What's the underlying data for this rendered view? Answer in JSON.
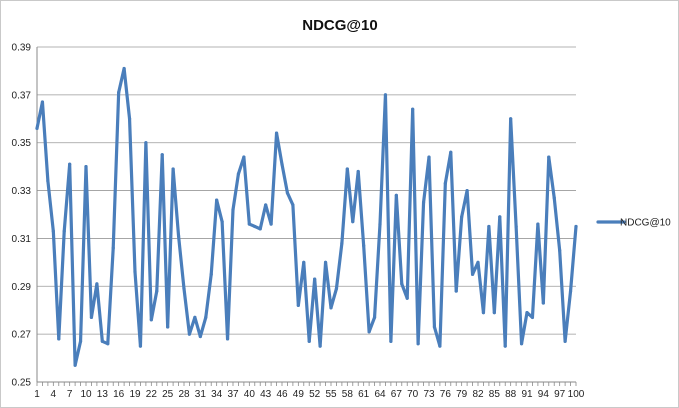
{
  "chart_data": {
    "type": "line",
    "title": "NDCG@10",
    "xlabel": "",
    "ylabel": "",
    "ylim": [
      0.25,
      0.39
    ],
    "yticks": [
      "0.25",
      "0.27",
      "0.29",
      "0.31",
      "0.33",
      "0.35",
      "0.37",
      "0.39"
    ],
    "xticks": [
      "1",
      "4",
      "7",
      "10",
      "13",
      "16",
      "19",
      "22",
      "25",
      "28",
      "31",
      "34",
      "37",
      "40",
      "43",
      "46",
      "49",
      "52",
      "55",
      "58",
      "61",
      "64",
      "67",
      "70",
      "73",
      "76",
      "79",
      "82",
      "85",
      "88",
      "91",
      "94",
      "97",
      "100"
    ],
    "grid": true,
    "legend_position": "right",
    "color": "#4a7ebb",
    "series": [
      {
        "name": "NDCG@10",
        "x": [
          1,
          2,
          3,
          4,
          5,
          6,
          7,
          8,
          9,
          10,
          11,
          12,
          13,
          14,
          15,
          16,
          17,
          18,
          19,
          20,
          21,
          22,
          23,
          24,
          25,
          26,
          27,
          28,
          29,
          30,
          31,
          32,
          33,
          34,
          35,
          36,
          37,
          38,
          39,
          40,
          41,
          42,
          43,
          44,
          45,
          46,
          47,
          48,
          49,
          50,
          51,
          52,
          53,
          54,
          55,
          56,
          57,
          58,
          59,
          60,
          61,
          62,
          63,
          64,
          65,
          66,
          67,
          68,
          69,
          70,
          71,
          72,
          73,
          74,
          75,
          76,
          77,
          78,
          79,
          80,
          81,
          82,
          83,
          84,
          85,
          86,
          87,
          88,
          89,
          90,
          91,
          92,
          93,
          94,
          95,
          96,
          97,
          98,
          99,
          100
        ],
        "values": [
          0.356,
          0.367,
          0.334,
          0.313,
          0.268,
          0.313,
          0.341,
          0.257,
          0.267,
          0.34,
          0.277,
          0.291,
          0.267,
          0.266,
          0.306,
          0.371,
          0.381,
          0.36,
          0.296,
          0.265,
          0.35,
          0.276,
          0.288,
          0.345,
          0.273,
          0.339,
          0.311,
          0.289,
          0.27,
          0.277,
          0.269,
          0.277,
          0.295,
          0.326,
          0.317,
          0.268,
          0.322,
          0.337,
          0.344,
          0.316,
          0.315,
          0.314,
          0.324,
          0.316,
          0.354,
          0.341,
          0.329,
          0.324,
          0.282,
          0.3,
          0.267,
          0.293,
          0.265,
          0.3,
          0.281,
          0.289,
          0.308,
          0.339,
          0.317,
          0.338,
          0.307,
          0.271,
          0.277,
          0.316,
          0.37,
          0.267,
          0.328,
          0.291,
          0.285,
          0.364,
          0.266,
          0.325,
          0.344,
          0.273,
          0.265,
          0.333,
          0.346,
          0.288,
          0.319,
          0.33,
          0.295,
          0.3,
          0.279,
          0.315,
          0.279,
          0.319,
          0.265,
          0.36,
          0.315,
          0.266,
          0.279,
          0.277,
          0.316,
          0.283,
          0.344,
          0.327,
          0.305,
          0.267,
          0.288,
          0.315
        ]
      }
    ]
  }
}
